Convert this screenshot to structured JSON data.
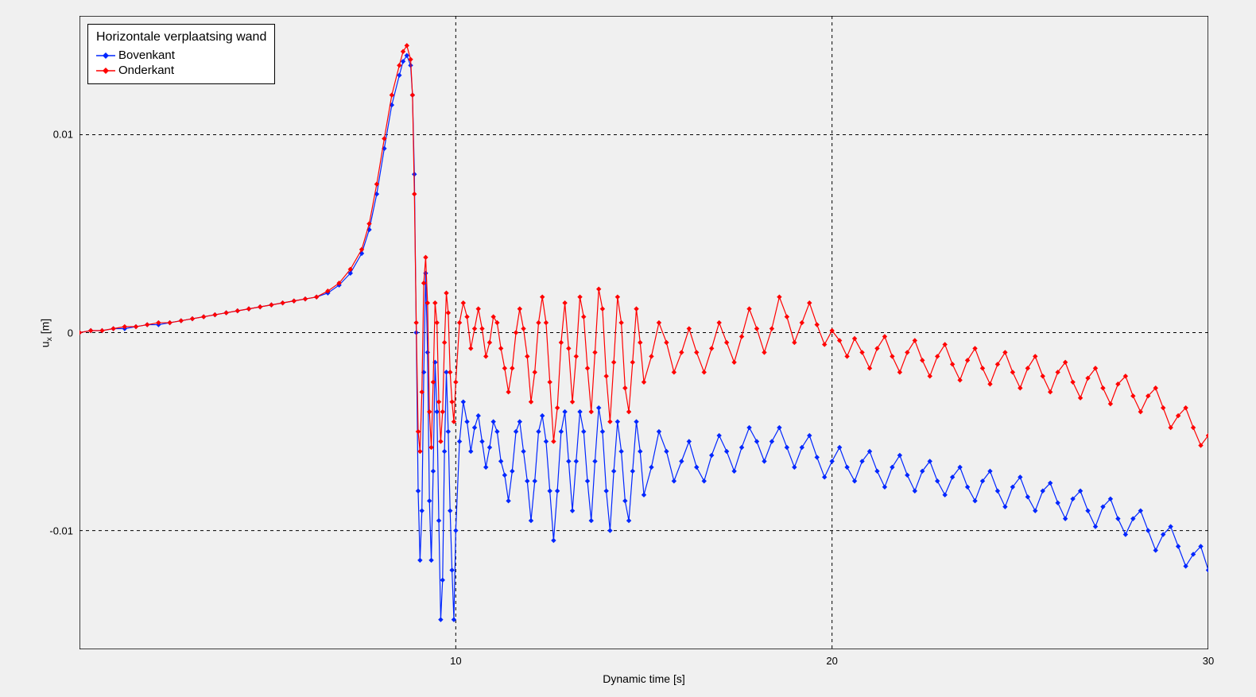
{
  "chart": {
    "type": "line",
    "background_color": "#f0f0f0",
    "plot_border_color": "#000000",
    "grid_color": "#000000",
    "grid_dash": "4,4",
    "xlim": [
      0,
      30
    ],
    "ylim": [
      -0.016,
      0.016
    ],
    "xticks": [
      10,
      20,
      30
    ],
    "yticks": [
      -0.01,
      0,
      0.01
    ],
    "xlabel": "Dynamic time [s]",
    "ylabel_html": "u<sub>x</sub> [m]",
    "ylabel_plain": "u_x [m]",
    "label_fontsize": 14,
    "tick_fontsize": 13,
    "marker": "diamond",
    "marker_size": 3.2,
    "line_width": 1.2,
    "legend": {
      "title": "Horizontale verplaatsing wand",
      "position": "top-left",
      "items": [
        {
          "label": "Bovenkant",
          "color": "#0026ff"
        },
        {
          "label": "Onderkant",
          "color": "#ff0000"
        }
      ]
    },
    "series": [
      {
        "name": "Bovenkant",
        "color": "#0026ff",
        "x": [
          0,
          0.3,
          0.6,
          0.9,
          1.2,
          1.5,
          1.8,
          2.1,
          2.4,
          2.7,
          3.0,
          3.3,
          3.6,
          3.9,
          4.2,
          4.5,
          4.8,
          5.1,
          5.4,
          5.7,
          6.0,
          6.3,
          6.6,
          6.9,
          7.2,
          7.5,
          7.7,
          7.9,
          8.1,
          8.3,
          8.5,
          8.6,
          8.7,
          8.8,
          8.85,
          8.9,
          8.95,
          9.0,
          9.05,
          9.1,
          9.15,
          9.2,
          9.25,
          9.3,
          9.35,
          9.4,
          9.45,
          9.5,
          9.55,
          9.6,
          9.65,
          9.7,
          9.75,
          9.8,
          9.85,
          9.9,
          9.95,
          10.0,
          10.1,
          10.2,
          10.3,
          10.4,
          10.5,
          10.6,
          10.7,
          10.8,
          10.9,
          11.0,
          11.1,
          11.2,
          11.3,
          11.4,
          11.5,
          11.6,
          11.7,
          11.8,
          11.9,
          12.0,
          12.1,
          12.2,
          12.3,
          12.4,
          12.5,
          12.6,
          12.7,
          12.8,
          12.9,
          13.0,
          13.1,
          13.2,
          13.3,
          13.4,
          13.5,
          13.6,
          13.7,
          13.8,
          13.9,
          14.0,
          14.1,
          14.2,
          14.3,
          14.4,
          14.5,
          14.6,
          14.7,
          14.8,
          14.9,
          15.0,
          15.2,
          15.4,
          15.6,
          15.8,
          16.0,
          16.2,
          16.4,
          16.6,
          16.8,
          17.0,
          17.2,
          17.4,
          17.6,
          17.8,
          18.0,
          18.2,
          18.4,
          18.6,
          18.8,
          19.0,
          19.2,
          19.4,
          19.6,
          19.8,
          20.0,
          20.2,
          20.4,
          20.6,
          20.8,
          21.0,
          21.2,
          21.4,
          21.6,
          21.8,
          22.0,
          22.2,
          22.4,
          22.6,
          22.8,
          23.0,
          23.2,
          23.4,
          23.6,
          23.8,
          24.0,
          24.2,
          24.4,
          24.6,
          24.8,
          25.0,
          25.2,
          25.4,
          25.6,
          25.8,
          26.0,
          26.2,
          26.4,
          26.6,
          26.8,
          27.0,
          27.2,
          27.4,
          27.6,
          27.8,
          28.0,
          28.2,
          28.4,
          28.6,
          28.8,
          29.0,
          29.2,
          29.4,
          29.6,
          29.8,
          30.0
        ],
        "y": [
          0.0,
          0.0001,
          0.0001,
          0.0002,
          0.0002,
          0.0003,
          0.0004,
          0.0004,
          0.0005,
          0.0006,
          0.0007,
          0.0008,
          0.0009,
          0.001,
          0.0011,
          0.0012,
          0.0013,
          0.0014,
          0.0015,
          0.0016,
          0.0017,
          0.0018,
          0.002,
          0.0024,
          0.003,
          0.004,
          0.0052,
          0.007,
          0.0093,
          0.0115,
          0.013,
          0.0137,
          0.014,
          0.0135,
          0.012,
          0.008,
          0.0,
          -0.008,
          -0.0115,
          -0.009,
          -0.002,
          0.003,
          -0.001,
          -0.0085,
          -0.0115,
          -0.007,
          -0.0015,
          -0.004,
          -0.0095,
          -0.0145,
          -0.0125,
          -0.006,
          -0.002,
          -0.005,
          -0.009,
          -0.012,
          -0.0145,
          -0.01,
          -0.0055,
          -0.0035,
          -0.0045,
          -0.006,
          -0.0048,
          -0.0042,
          -0.0055,
          -0.0068,
          -0.0058,
          -0.0045,
          -0.005,
          -0.0065,
          -0.0072,
          -0.0085,
          -0.007,
          -0.005,
          -0.0045,
          -0.006,
          -0.0075,
          -0.0095,
          -0.0075,
          -0.005,
          -0.0042,
          -0.0055,
          -0.008,
          -0.0105,
          -0.008,
          -0.005,
          -0.004,
          -0.0065,
          -0.009,
          -0.0065,
          -0.004,
          -0.005,
          -0.0075,
          -0.0095,
          -0.0065,
          -0.0038,
          -0.005,
          -0.008,
          -0.01,
          -0.007,
          -0.0045,
          -0.006,
          -0.0085,
          -0.0095,
          -0.007,
          -0.0045,
          -0.006,
          -0.0082,
          -0.0068,
          -0.005,
          -0.006,
          -0.0075,
          -0.0065,
          -0.0055,
          -0.0068,
          -0.0075,
          -0.0062,
          -0.0052,
          -0.006,
          -0.007,
          -0.0058,
          -0.0048,
          -0.0055,
          -0.0065,
          -0.0055,
          -0.0048,
          -0.0058,
          -0.0068,
          -0.0058,
          -0.0052,
          -0.0063,
          -0.0073,
          -0.0065,
          -0.0058,
          -0.0068,
          -0.0075,
          -0.0065,
          -0.006,
          -0.007,
          -0.0078,
          -0.0068,
          -0.0062,
          -0.0072,
          -0.008,
          -0.007,
          -0.0065,
          -0.0075,
          -0.0082,
          -0.0073,
          -0.0068,
          -0.0078,
          -0.0085,
          -0.0075,
          -0.007,
          -0.008,
          -0.0088,
          -0.0078,
          -0.0073,
          -0.0083,
          -0.009,
          -0.008,
          -0.0076,
          -0.0086,
          -0.0094,
          -0.0084,
          -0.008,
          -0.009,
          -0.0098,
          -0.0088,
          -0.0084,
          -0.0094,
          -0.0102,
          -0.0094,
          -0.009,
          -0.01,
          -0.011,
          -0.0102,
          -0.0098,
          -0.0108,
          -0.0118,
          -0.0112,
          -0.0108,
          -0.012
        ]
      },
      {
        "name": "Onderkant",
        "color": "#ff0000",
        "x": [
          0,
          0.3,
          0.6,
          0.9,
          1.2,
          1.5,
          1.8,
          2.1,
          2.4,
          2.7,
          3.0,
          3.3,
          3.6,
          3.9,
          4.2,
          4.5,
          4.8,
          5.1,
          5.4,
          5.7,
          6.0,
          6.3,
          6.6,
          6.9,
          7.2,
          7.5,
          7.7,
          7.9,
          8.1,
          8.3,
          8.5,
          8.6,
          8.7,
          8.8,
          8.85,
          8.9,
          8.95,
          9.0,
          9.05,
          9.1,
          9.15,
          9.2,
          9.25,
          9.3,
          9.35,
          9.4,
          9.45,
          9.5,
          9.55,
          9.6,
          9.65,
          9.7,
          9.75,
          9.8,
          9.85,
          9.9,
          9.95,
          10.0,
          10.1,
          10.2,
          10.3,
          10.4,
          10.5,
          10.6,
          10.7,
          10.8,
          10.9,
          11.0,
          11.1,
          11.2,
          11.3,
          11.4,
          11.5,
          11.6,
          11.7,
          11.8,
          11.9,
          12.0,
          12.1,
          12.2,
          12.3,
          12.4,
          12.5,
          12.6,
          12.7,
          12.8,
          12.9,
          13.0,
          13.1,
          13.2,
          13.3,
          13.4,
          13.5,
          13.6,
          13.7,
          13.8,
          13.9,
          14.0,
          14.1,
          14.2,
          14.3,
          14.4,
          14.5,
          14.6,
          14.7,
          14.8,
          14.9,
          15.0,
          15.2,
          15.4,
          15.6,
          15.8,
          16.0,
          16.2,
          16.4,
          16.6,
          16.8,
          17.0,
          17.2,
          17.4,
          17.6,
          17.8,
          18.0,
          18.2,
          18.4,
          18.6,
          18.8,
          19.0,
          19.2,
          19.4,
          19.6,
          19.8,
          20.0,
          20.2,
          20.4,
          20.6,
          20.8,
          21.0,
          21.2,
          21.4,
          21.6,
          21.8,
          22.0,
          22.2,
          22.4,
          22.6,
          22.8,
          23.0,
          23.2,
          23.4,
          23.6,
          23.8,
          24.0,
          24.2,
          24.4,
          24.6,
          24.8,
          25.0,
          25.2,
          25.4,
          25.6,
          25.8,
          26.0,
          26.2,
          26.4,
          26.6,
          26.8,
          27.0,
          27.2,
          27.4,
          27.6,
          27.8,
          28.0,
          28.2,
          28.4,
          28.6,
          28.8,
          29.0,
          29.2,
          29.4,
          29.6,
          29.8,
          30.0
        ],
        "y": [
          0.0,
          0.0001,
          0.0001,
          0.0002,
          0.0003,
          0.0003,
          0.0004,
          0.0005,
          0.0005,
          0.0006,
          0.0007,
          0.0008,
          0.0009,
          0.001,
          0.0011,
          0.0012,
          0.0013,
          0.0014,
          0.0015,
          0.0016,
          0.0017,
          0.0018,
          0.0021,
          0.0025,
          0.0032,
          0.0042,
          0.0055,
          0.0075,
          0.0098,
          0.012,
          0.0135,
          0.0142,
          0.0145,
          0.0138,
          0.012,
          0.007,
          0.0005,
          -0.005,
          -0.006,
          -0.003,
          0.0025,
          0.0038,
          0.0015,
          -0.004,
          -0.0058,
          -0.0025,
          0.0015,
          0.0005,
          -0.0035,
          -0.0055,
          -0.004,
          -0.0005,
          0.002,
          0.001,
          -0.002,
          -0.0035,
          -0.0045,
          -0.0025,
          0.0005,
          0.0015,
          0.0008,
          -0.0008,
          0.0002,
          0.0012,
          0.0002,
          -0.0012,
          -0.0005,
          0.0008,
          0.0005,
          -0.0008,
          -0.0018,
          -0.003,
          -0.0018,
          0.0,
          0.0012,
          0.0002,
          -0.0012,
          -0.0035,
          -0.002,
          0.0005,
          0.0018,
          0.0005,
          -0.0025,
          -0.0055,
          -0.0038,
          -0.0005,
          0.0015,
          -0.0008,
          -0.0035,
          -0.0012,
          0.0018,
          0.0008,
          -0.0018,
          -0.004,
          -0.001,
          0.0022,
          0.0012,
          -0.0022,
          -0.0045,
          -0.0015,
          0.0018,
          0.0005,
          -0.0028,
          -0.004,
          -0.0015,
          0.0012,
          -0.0005,
          -0.0025,
          -0.0012,
          0.0005,
          -0.0005,
          -0.002,
          -0.001,
          0.0002,
          -0.001,
          -0.002,
          -0.0008,
          0.0005,
          -0.0005,
          -0.0015,
          -0.0002,
          0.0012,
          0.0002,
          -0.001,
          0.0002,
          0.0018,
          0.0008,
          -0.0005,
          0.0005,
          0.0015,
          0.0004,
          -0.0006,
          0.0001,
          -0.0004,
          -0.0012,
          -0.0003,
          -0.001,
          -0.0018,
          -0.0008,
          -0.0002,
          -0.0012,
          -0.002,
          -0.001,
          -0.0004,
          -0.0014,
          -0.0022,
          -0.0012,
          -0.0006,
          -0.0016,
          -0.0024,
          -0.0014,
          -0.0008,
          -0.0018,
          -0.0026,
          -0.0016,
          -0.001,
          -0.002,
          -0.0028,
          -0.0018,
          -0.0012,
          -0.0022,
          -0.003,
          -0.002,
          -0.0015,
          -0.0025,
          -0.0033,
          -0.0023,
          -0.0018,
          -0.0028,
          -0.0036,
          -0.0026,
          -0.0022,
          -0.0032,
          -0.004,
          -0.0032,
          -0.0028,
          -0.0038,
          -0.0048,
          -0.0042,
          -0.0038,
          -0.0048,
          -0.0057,
          -0.0052
        ]
      }
    ]
  }
}
